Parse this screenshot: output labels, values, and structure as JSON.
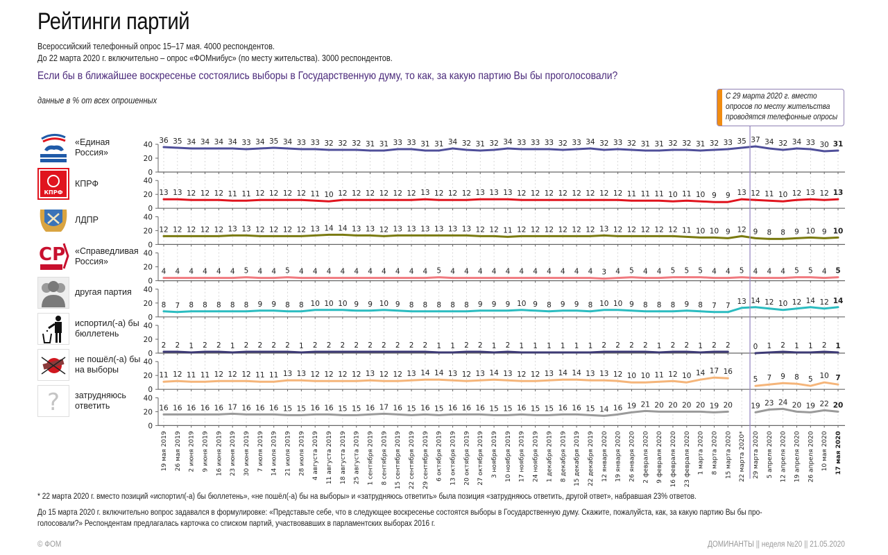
{
  "header": {
    "title": "Рейтинги партий",
    "subtitle_line1": "Всероссийский телефонный опрос 15–17 мая. 4000 респондентов.",
    "subtitle_line2": "До 22 марта 2020 г. включительно – опрос «ФОМнибус» (по месту жительства). 3000 респондентов.",
    "question": "Если бы в ближайшее воскресенье состоялись выборы в Государственную думу, то как, за какую партию Вы бы проголосовали?",
    "units": "данные в % от всех опрошенных"
  },
  "annotation": {
    "text": "С 29 марта 2020 г. вместо\nопросов по месту жительства\nпроводятся телефонные опросы",
    "accent_color": "#f08c12"
  },
  "footnotes": {
    "note1": "*  22 марта 2020 г. вместо позиций «испортил(-а) бы бюллетень», «не пошёл(-а) бы на выборы» и «затрудняюсь ответить» была позиция «затрудняюсь ответить, другой ответ», набравшая 23% ответов.",
    "note2_line1": "До 15 марта 2020 г. включительно вопрос задавался в формулировке: «Представьте себе, что в следующее воскресенье состоятся выборы в Государственную думу. Скажите, пожалуйста, как, за какую партию Вы бы про-",
    "note2_line2": "голосовали?» Респондентам предлагалась карточка со списком партий, участвовавших в парламентских выборах 2016 г.",
    "copyright": "© ФОМ",
    "issue": "ДОМИНАНТЫ  ||  неделя №20 || 21.05.2020"
  },
  "chart_data": {
    "type": "line",
    "title": "Рейтинги партий",
    "xlabel": "",
    "ylabel": "%",
    "ylim": [
      0,
      40
    ],
    "yticks": [
      0,
      20,
      40
    ],
    "grid": true,
    "divider_after": "22 марта 2020*",
    "x": [
      "19 мая 2019",
      "26 мая 2019",
      "2 июня 2019",
      "9 июня 2019",
      "16 июня 2019",
      "23 июня 2019",
      "30 июня 2019",
      "7 июля 2019",
      "14 июля 2019",
      "21 июля 2019",
      "28 июля 2019",
      "4 августа 2019",
      "11 августа 2019",
      "18 августа 2019",
      "25 августа 2019",
      "1 сентября 2019",
      "8 сентября 2019",
      "15 сентября 2019",
      "22 сентября 2019",
      "29 сентября 2019",
      "6 октября 2019",
      "13 октября 2019",
      "20 октября 2019",
      "27 октября 2019",
      "3 ноября 2019",
      "10 ноября 2019",
      "17 ноября 2019",
      "24 ноября 2019",
      "1 декабря 2019",
      "8 декабря 2019",
      "15 декабря 2019",
      "22 декабря 2019",
      "12 января 2020",
      "19 января 2020",
      "26 января 2020",
      "2 февраля 2020",
      "9 февраля 2020",
      "16 февраля 2020",
      "23 февраля 2020",
      "1 марта 2020",
      "8 марта 2020",
      "15 марта 2020",
      "22 марта 2020*",
      "29 марта 2020",
      "5 апреля 2020",
      "12 апреля 2020",
      "19 апреля 2020",
      "26 апреля 2020",
      "10 мая 2020",
      "17 мая 2020"
    ],
    "series": [
      {
        "name": "«Единая Россия»",
        "color": "#4f4f9a",
        "values": [
          36,
          35,
          34,
          34,
          34,
          34,
          33,
          34,
          35,
          34,
          33,
          33,
          32,
          32,
          32,
          31,
          31,
          33,
          33,
          31,
          31,
          34,
          32,
          31,
          32,
          34,
          33,
          33,
          33,
          32,
          33,
          34,
          32,
          33,
          32,
          31,
          31,
          32,
          32,
          31,
          32,
          33,
          35,
          37,
          34,
          32,
          34,
          33,
          30,
          31
        ]
      },
      {
        "name": "КПРФ",
        "color": "#e0141e",
        "values": [
          13,
          13,
          12,
          12,
          12,
          11,
          11,
          12,
          12,
          12,
          12,
          11,
          10,
          12,
          12,
          12,
          12,
          12,
          12,
          13,
          12,
          12,
          12,
          13,
          13,
          13,
          12,
          12,
          12,
          12,
          12,
          12,
          12,
          12,
          11,
          11,
          11,
          10,
          11,
          10,
          9,
          9,
          13,
          12,
          11,
          10,
          12,
          13,
          12,
          13
        ]
      },
      {
        "name": "ЛДПР",
        "color": "#7a7a10",
        "values": [
          12,
          12,
          12,
          12,
          12,
          13,
          13,
          12,
          12,
          12,
          12,
          13,
          14,
          14,
          13,
          13,
          12,
          13,
          13,
          13,
          13,
          13,
          13,
          12,
          12,
          11,
          12,
          12,
          12,
          12,
          12,
          12,
          13,
          12,
          12,
          12,
          12,
          12,
          11,
          10,
          10,
          9,
          12,
          9,
          8,
          8,
          9,
          10,
          9,
          10
        ]
      },
      {
        "name": "«Справедливая Россия»",
        "color": "#f07a7f",
        "values": [
          4,
          4,
          4,
          4,
          4,
          4,
          5,
          4,
          4,
          5,
          4,
          4,
          4,
          4,
          4,
          4,
          4,
          4,
          4,
          4,
          5,
          4,
          4,
          4,
          4,
          4,
          4,
          4,
          4,
          4,
          4,
          4,
          3,
          4,
          5,
          4,
          4,
          5,
          5,
          5,
          4,
          4,
          5,
          4,
          4,
          4,
          5,
          5,
          4,
          5
        ]
      },
      {
        "name": "другая партия",
        "color": "#2bbcc0",
        "values": [
          8,
          7,
          8,
          8,
          8,
          8,
          8,
          9,
          9,
          8,
          8,
          10,
          10,
          10,
          9,
          9,
          10,
          9,
          8,
          8,
          8,
          8,
          8,
          9,
          9,
          9,
          10,
          9,
          8,
          9,
          9,
          8,
          10,
          10,
          9,
          8,
          8,
          8,
          9,
          8,
          7,
          7,
          13,
          14,
          12,
          10,
          12,
          14,
          12,
          14
        ]
      },
      {
        "name": "испортил(-а) бы бюллетень",
        "color": "#3d3a75",
        "values": [
          2,
          2,
          1,
          2,
          2,
          1,
          2,
          2,
          2,
          2,
          1,
          2,
          2,
          2,
          2,
          2,
          2,
          2,
          2,
          2,
          1,
          1,
          2,
          2,
          1,
          2,
          1,
          1,
          1,
          1,
          1,
          1,
          2,
          2,
          2,
          2,
          1,
          2,
          2,
          1,
          2,
          2,
          null,
          0,
          1,
          2,
          1,
          1,
          2,
          1
        ]
      },
      {
        "name": "не пошёл(-а) бы на выборы",
        "color": "#f5b57a",
        "values": [
          11,
          12,
          11,
          11,
          12,
          12,
          12,
          11,
          11,
          13,
          13,
          12,
          12,
          12,
          12,
          13,
          12,
          12,
          13,
          14,
          14,
          13,
          12,
          13,
          14,
          13,
          12,
          12,
          13,
          14,
          14,
          13,
          13,
          12,
          10,
          10,
          11,
          12,
          10,
          14,
          17,
          16,
          null,
          5,
          7,
          9,
          8,
          5,
          10,
          7
        ]
      },
      {
        "name": "затрудняюсь ответить",
        "color": "#9a9a9a",
        "values": [
          16,
          16,
          16,
          16,
          16,
          17,
          16,
          16,
          16,
          15,
          15,
          16,
          16,
          15,
          15,
          16,
          17,
          16,
          15,
          16,
          15,
          16,
          16,
          16,
          15,
          15,
          16,
          15,
          15,
          16,
          16,
          15,
          14,
          16,
          19,
          21,
          20,
          20,
          20,
          20,
          19,
          20,
          null,
          19,
          23,
          24,
          20,
          19,
          22,
          20
        ]
      }
    ]
  },
  "row_labels": [
    {
      "label": "«Единая\nРоссия»",
      "icon": "united-russia-logo"
    },
    {
      "label": "КПРФ",
      "icon": "kprf-logo"
    },
    {
      "label": "ЛДПР",
      "icon": "ldpr-logo"
    },
    {
      "label": "«Справедливая\nРоссия»",
      "icon": "just-russia-logo"
    },
    {
      "label": "другая партия",
      "icon": "people-silhouette-icon"
    },
    {
      "label": "испортил(-а) бы\nбюллетень",
      "icon": "trash-person-icon"
    },
    {
      "label": "не пошёл(-а) бы\nна выборы",
      "icon": "crossed-ballot-icon"
    },
    {
      "label": "затрудняюсь\nответить",
      "icon": "question-mark-icon"
    }
  ]
}
